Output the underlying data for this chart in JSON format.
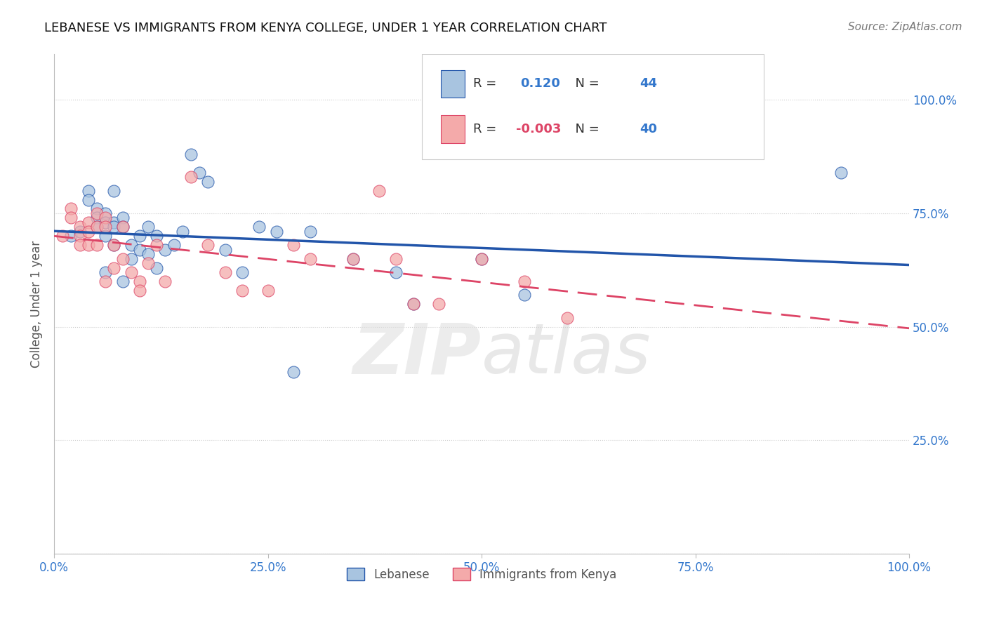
{
  "title": "LEBANESE VS IMMIGRANTS FROM KENYA COLLEGE, UNDER 1 YEAR CORRELATION CHART",
  "source": "Source: ZipAtlas.com",
  "ylabel": "College, Under 1 year",
  "r_lebanese": 0.12,
  "n_lebanese": 44,
  "r_kenya": -0.003,
  "n_kenya": 40,
  "blue_color": "#A8C4E0",
  "pink_color": "#F4AAAA",
  "trend_blue": "#2255AA",
  "trend_pink": "#DD4466",
  "watermark": "ZIPatlas",
  "blue_x": [
    0.02,
    0.03,
    0.04,
    0.04,
    0.05,
    0.05,
    0.05,
    0.06,
    0.06,
    0.06,
    0.07,
    0.07,
    0.07,
    0.08,
    0.08,
    0.09,
    0.09,
    0.1,
    0.1,
    0.11,
    0.11,
    0.12,
    0.12,
    0.13,
    0.14,
    0.15,
    0.16,
    0.18,
    0.2,
    0.22,
    0.24,
    0.26,
    0.3,
    0.35,
    0.4,
    0.42,
    0.5,
    0.55,
    0.92,
    0.06,
    0.07,
    0.08,
    0.17,
    0.28
  ],
  "blue_y": [
    0.7,
    0.71,
    0.8,
    0.78,
    0.76,
    0.74,
    0.72,
    0.75,
    0.73,
    0.7,
    0.73,
    0.72,
    0.68,
    0.74,
    0.72,
    0.68,
    0.65,
    0.7,
    0.67,
    0.66,
    0.72,
    0.63,
    0.7,
    0.67,
    0.68,
    0.71,
    0.88,
    0.82,
    0.67,
    0.62,
    0.72,
    0.71,
    0.71,
    0.65,
    0.62,
    0.55,
    0.65,
    0.57,
    0.84,
    0.62,
    0.8,
    0.6,
    0.84,
    0.4
  ],
  "pink_x": [
    0.01,
    0.02,
    0.02,
    0.03,
    0.03,
    0.03,
    0.04,
    0.04,
    0.04,
    0.05,
    0.05,
    0.05,
    0.06,
    0.06,
    0.06,
    0.07,
    0.07,
    0.08,
    0.08,
    0.09,
    0.1,
    0.1,
    0.11,
    0.12,
    0.13,
    0.16,
    0.18,
    0.2,
    0.22,
    0.25,
    0.28,
    0.3,
    0.35,
    0.38,
    0.4,
    0.42,
    0.45,
    0.5,
    0.55,
    0.6
  ],
  "pink_y": [
    0.7,
    0.76,
    0.74,
    0.72,
    0.7,
    0.68,
    0.73,
    0.71,
    0.68,
    0.75,
    0.72,
    0.68,
    0.74,
    0.72,
    0.6,
    0.68,
    0.63,
    0.65,
    0.72,
    0.62,
    0.6,
    0.58,
    0.64,
    0.68,
    0.6,
    0.83,
    0.68,
    0.62,
    0.58,
    0.58,
    0.68,
    0.65,
    0.65,
    0.8,
    0.65,
    0.55,
    0.55,
    0.65,
    0.6,
    0.52
  ],
  "xlim": [
    0.0,
    1.0
  ],
  "ylim": [
    0.0,
    1.1
  ],
  "yticks": [
    0.0,
    0.25,
    0.5,
    0.75,
    1.0
  ],
  "yticklabels_right": [
    "",
    "25.0%",
    "50.0%",
    "75.0%",
    "100.0%"
  ],
  "xticks": [
    0.0,
    0.25,
    0.5,
    0.75,
    1.0
  ],
  "xticklabels": [
    "0.0%",
    "25.0%",
    "50.0%",
    "75.0%",
    "100.0%"
  ],
  "grid_color": "#CCCCCC",
  "bg_color": "#FFFFFF",
  "title_color": "#111111",
  "axis_label_color": "#555555",
  "tick_color": "#3377CC",
  "source_color": "#777777"
}
